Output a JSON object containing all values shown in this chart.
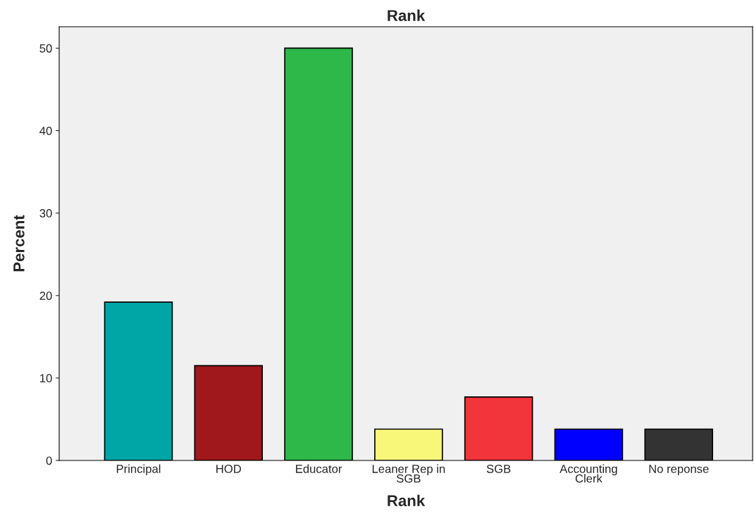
{
  "chart_data": {
    "type": "bar",
    "title": "Rank",
    "xlabel": "Rank",
    "ylabel": "Percent",
    "categories": [
      "Principal",
      "HOD",
      "Educator",
      "Leaner Rep in\nSGB",
      "SGB",
      "Accounting\nClerk",
      "No reponse"
    ],
    "values": [
      19.2,
      11.5,
      50,
      3.8,
      7.7,
      3.8,
      3.8
    ],
    "colors": [
      "#00a6a6",
      "#a0181c",
      "#2eb84a",
      "#f9f77a",
      "#f2343b",
      "#0000ff",
      "#333333"
    ],
    "ylim": [
      0,
      52.6
    ],
    "yticks": [
      0,
      10,
      20,
      30,
      40,
      50
    ],
    "grid": false,
    "legend": false
  }
}
